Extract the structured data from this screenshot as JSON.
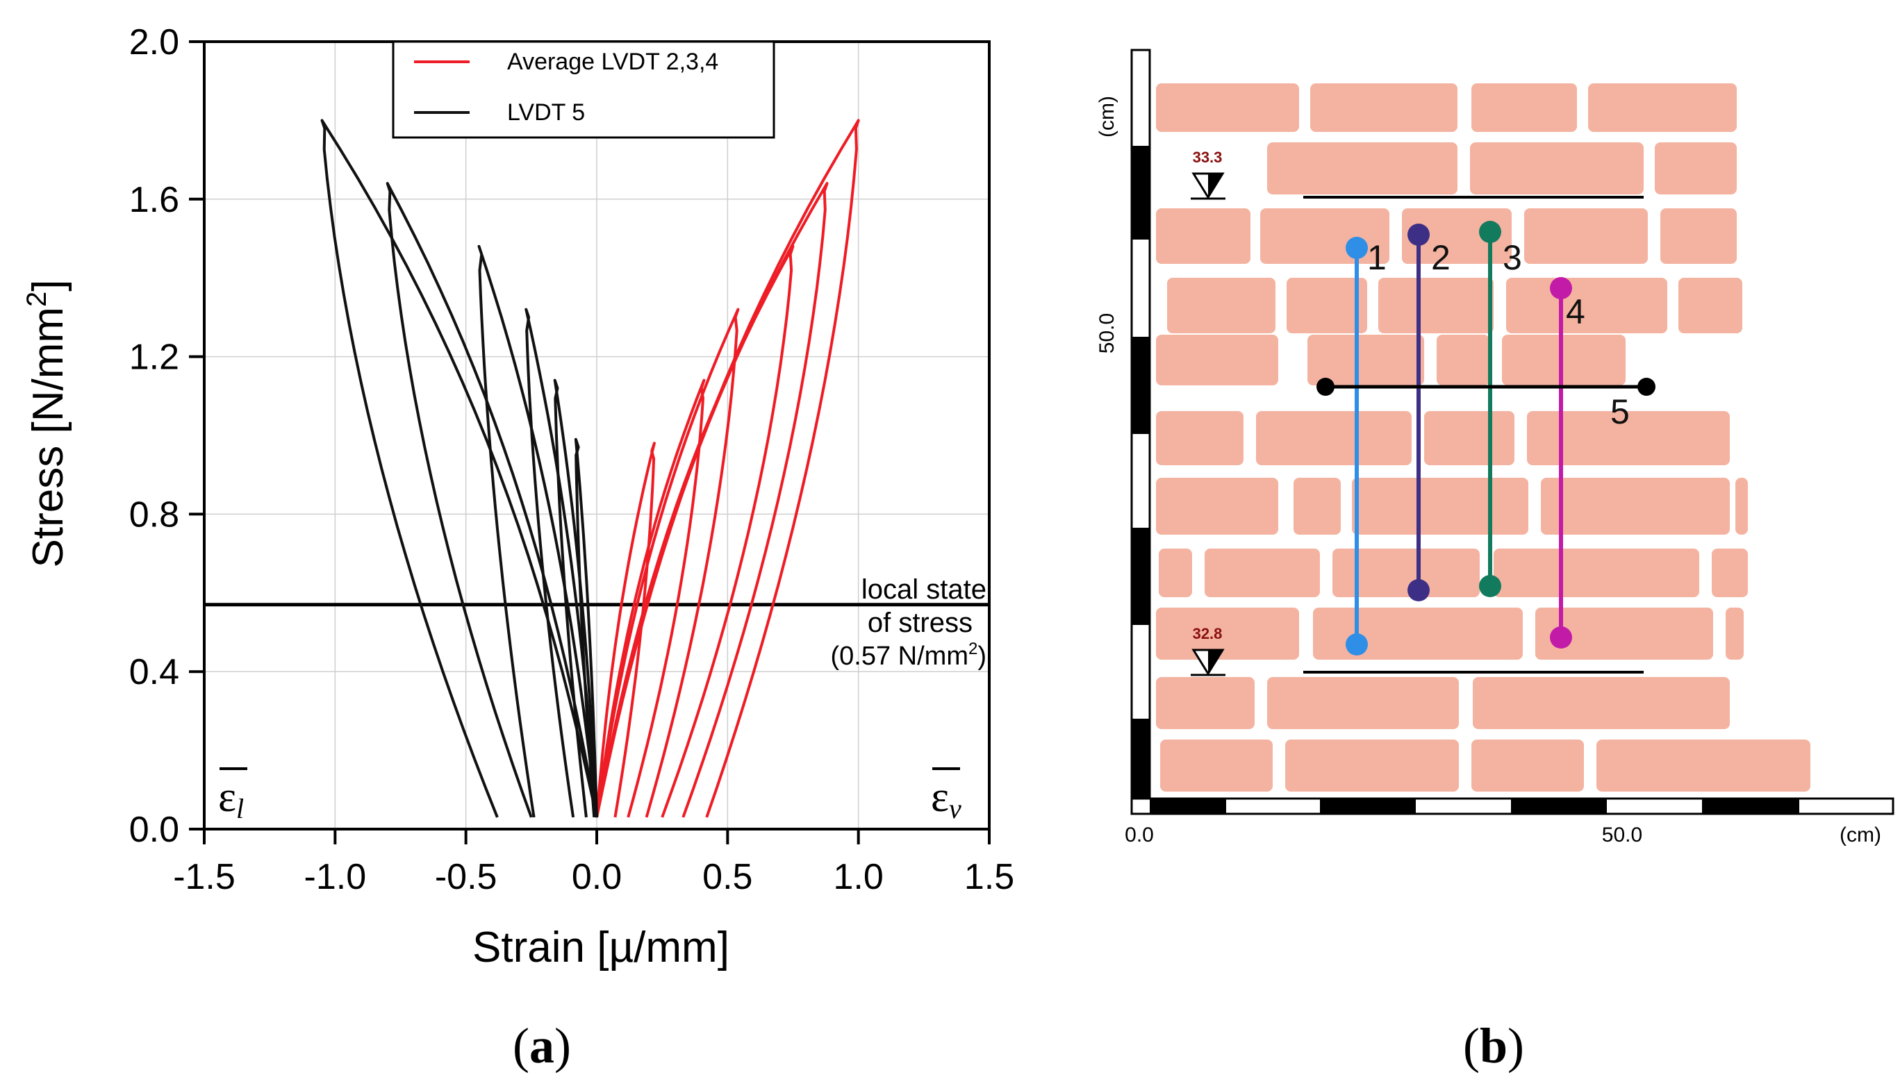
{
  "colors": {
    "avg": "#ee1c25",
    "lvdt5": "#111111",
    "brick": "#f4b3a0",
    "lvdt1": "#2f8fe6",
    "lvdt2": "#3d2f85",
    "lvdt3": "#127a5d",
    "lvdt4": "#c21ba8",
    "lvdt5_marker": "#000000"
  },
  "panel_a": {
    "label_open": "(",
    "label_letter": "a",
    "label_close": ")",
    "ylabel_main": "Stress [N/mm",
    "ylabel_sup": "2",
    "ylabel_end": "]",
    "xlabel": "Strain [µ/mm]",
    "eps_l": "ε",
    "eps_l_sub": "l",
    "eps_v": "ε",
    "eps_v_sub": "v",
    "stress_note_line1": "local state",
    "stress_note_line2": "of stress",
    "stress_note_line3_a": "(0.57 N/mm",
    "stress_note_line3_sup": "2",
    "stress_note_line3_b": ")"
  },
  "chart_data": {
    "type": "line",
    "title": "",
    "xlabel": "Strain [µ/mm]",
    "ylabel": "Stress [N/mm2]",
    "xlim": [
      -1.5,
      1.5
    ],
    "ylim": [
      0.0,
      2.0
    ],
    "x_ticks": [
      "-1.5",
      "-1.0",
      "-0.5",
      "0.0",
      "0.5",
      "1.0",
      "1.5"
    ],
    "y_ticks": [
      "0.0",
      "0.4",
      "0.8",
      "1.2",
      "1.6",
      "2.0"
    ],
    "grid": true,
    "legend_position": "top",
    "reference_line": {
      "y": 0.57,
      "label": "local state of stress (0.57 N/mm2)"
    },
    "series": [
      {
        "name": "Average LVDT 2,3,4",
        "cycles": [
          {
            "peak": [
              0.22,
              0.98
            ],
            "end": 0.07
          },
          {
            "peak": [
              0.41,
              1.14
            ],
            "end": 0.12
          },
          {
            "peak": [
              0.54,
              1.32
            ],
            "end": 0.19
          },
          {
            "peak": [
              0.75,
              1.48
            ],
            "end": 0.25
          },
          {
            "peak": [
              0.88,
              1.64
            ],
            "end": 0.33
          },
          {
            "peak": [
              1.0,
              1.8
            ],
            "end": 0.42
          }
        ]
      },
      {
        "name": "LVDT 5",
        "cycles": [
          {
            "peak": [
              -0.08,
              0.99
            ],
            "end": -0.01
          },
          {
            "peak": [
              -0.16,
              1.14
            ],
            "end": -0.04
          },
          {
            "peak": [
              -0.27,
              1.32
            ],
            "end": -0.09
          },
          {
            "peak": [
              -0.45,
              1.48
            ],
            "end": -0.24
          },
          {
            "peak": [
              -0.8,
              1.64
            ],
            "end": -0.25
          },
          {
            "peak": [
              -1.05,
              1.8
            ],
            "end": -0.38
          }
        ]
      }
    ]
  },
  "panel_b": {
    "label_open": "(",
    "label_letter": "b",
    "label_close": ")",
    "axis_unit_x": "(cm)",
    "axis_unit_y": "(cm)",
    "x_zero": "0.0",
    "x_mid": "50.0",
    "y_mid": "50.0",
    "level_top": "33.3",
    "level_bottom": "32.8",
    "lvdt_labels": [
      "1",
      "2",
      "3",
      "4",
      "5"
    ]
  }
}
